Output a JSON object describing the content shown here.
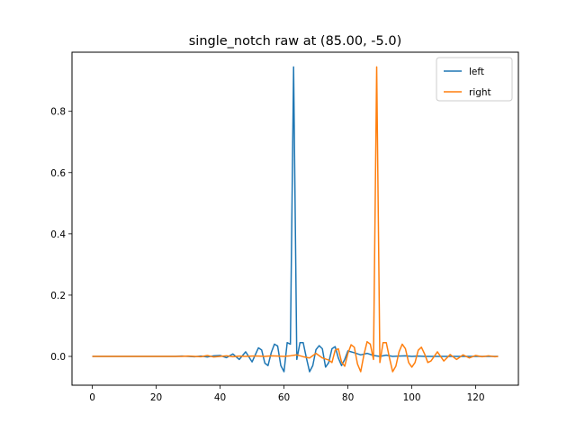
{
  "chart_data": {
    "type": "line",
    "title": "single_notch raw at (85.00, -5.0)",
    "xlabel": "",
    "ylabel": "",
    "xlim": [
      -6.35,
      133.35
    ],
    "ylim": [
      -0.094,
      0.993
    ],
    "xticks": [
      0,
      20,
      40,
      60,
      80,
      100,
      120
    ],
    "yticks": [
      0.0,
      0.2,
      0.4,
      0.6,
      0.8
    ],
    "xtick_labels": [
      "0",
      "20",
      "40",
      "60",
      "80",
      "100",
      "120"
    ],
    "ytick_labels": [
      "0.0",
      "0.2",
      "0.4",
      "0.6",
      "0.8"
    ],
    "grid": false,
    "legend_position": "top-right",
    "series": [
      {
        "name": "left",
        "color": "#1f77b4",
        "x": [
          0,
          2,
          4,
          6,
          8,
          10,
          12,
          14,
          16,
          18,
          20,
          22,
          24,
          26,
          28,
          30,
          32,
          34,
          36,
          38,
          40,
          42,
          44,
          46,
          48,
          50,
          52,
          53,
          54,
          55,
          56,
          57,
          58,
          59,
          60,
          61,
          62,
          63,
          64,
          65,
          66,
          67,
          68,
          69,
          70,
          71,
          72,
          73,
          74,
          75,
          76,
          77,
          78,
          79,
          80,
          82,
          84,
          86,
          88,
          90,
          92,
          94,
          96,
          98,
          100,
          102,
          104,
          106,
          108,
          110,
          112,
          114,
          116,
          118,
          120,
          122,
          124,
          126,
          127
        ],
        "values": [
          0.0,
          0.0,
          0.0,
          0.0,
          0.0,
          0.0,
          0.0,
          0.0,
          0.0,
          0.0,
          0.0,
          0.0,
          0.0,
          0.0,
          0.001,
          0.0,
          -0.001,
          0.001,
          -0.002,
          0.002,
          0.003,
          -0.004,
          0.008,
          -0.01,
          0.015,
          -0.018,
          0.028,
          0.021,
          -0.022,
          -0.03,
          0.012,
          0.04,
          0.034,
          -0.03,
          -0.05,
          0.045,
          0.04,
          0.945,
          -0.01,
          0.045,
          0.045,
          -0.005,
          -0.05,
          -0.03,
          0.022,
          0.035,
          0.025,
          -0.035,
          -0.02,
          0.025,
          0.032,
          -0.005,
          -0.03,
          -0.01,
          0.018,
          0.012,
          0.005,
          0.01,
          0.003,
          0.0,
          0.004,
          0.0,
          0.001,
          0.002,
          0.0,
          0.001,
          0.0,
          0.0,
          0.0,
          0.0,
          0.0,
          0.0,
          0.0,
          0.0,
          0.0,
          0.0,
          0.0,
          0.0,
          0.0
        ]
      },
      {
        "name": "right",
        "color": "#ff7f0e",
        "x": [
          0,
          2,
          4,
          6,
          8,
          10,
          12,
          14,
          16,
          18,
          20,
          22,
          24,
          26,
          28,
          30,
          32,
          34,
          36,
          38,
          40,
          42,
          44,
          46,
          48,
          50,
          52,
          54,
          56,
          58,
          60,
          62,
          64,
          66,
          68,
          70,
          72,
          74,
          75,
          76,
          77,
          78,
          79,
          80,
          81,
          82,
          83,
          84,
          85,
          86,
          87,
          88,
          89,
          90,
          91,
          92,
          93,
          94,
          95,
          96,
          97,
          98,
          99,
          100,
          101,
          102,
          103,
          104,
          105,
          106,
          108,
          110,
          112,
          114,
          116,
          118,
          120,
          122,
          124,
          126,
          127
        ],
        "values": [
          0.0,
          0.0,
          0.0,
          0.0,
          0.0,
          0.0,
          0.0,
          0.0,
          0.0,
          0.0,
          0.0,
          0.0,
          0.0,
          0.0,
          0.0,
          0.001,
          0.0,
          -0.001,
          0.003,
          -0.002,
          0.0,
          0.002,
          -0.001,
          0.001,
          0.0,
          0.001,
          0.001,
          0.0,
          0.002,
          0.001,
          0.0,
          0.002,
          0.005,
          -0.001,
          -0.005,
          0.01,
          -0.005,
          -0.012,
          -0.02,
          0.02,
          0.025,
          -0.018,
          -0.032,
          0.01,
          0.038,
          0.03,
          -0.025,
          -0.05,
          0.005,
          0.048,
          0.04,
          -0.01,
          0.945,
          -0.02,
          0.045,
          0.045,
          -0.005,
          -0.05,
          -0.032,
          0.015,
          0.04,
          0.025,
          -0.02,
          -0.035,
          -0.02,
          0.02,
          0.03,
          0.008,
          -0.02,
          -0.015,
          0.015,
          -0.015,
          0.006,
          -0.01,
          0.005,
          -0.005,
          0.003,
          -0.001,
          0.002,
          -0.001,
          0.0
        ]
      }
    ]
  }
}
